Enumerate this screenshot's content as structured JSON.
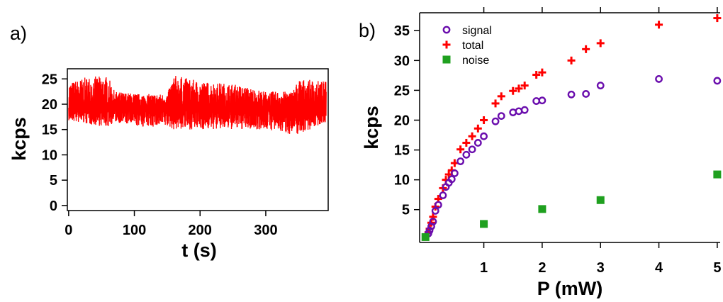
{
  "chart_data": [
    {
      "type": "line",
      "panel_label": "a)",
      "xlabel": "t (s)",
      "ylabel": "kcps",
      "xlim": [
        -2,
        395
      ],
      "ylim": [
        -1,
        27
      ],
      "xticks": [
        0,
        100,
        200,
        300
      ],
      "yticks": [
        0,
        5,
        10,
        15,
        20,
        25
      ],
      "grid": false,
      "series": [
        {
          "color": "#ff0000",
          "mean": 19.3,
          "x_range": [
            0,
            392
          ],
          "min": 13.6,
          "max": 26.2,
          "envelope": [
            [
              0,
              16.7,
              24.2
            ],
            [
              30,
              16.0,
              25.5
            ],
            [
              60,
              15.5,
              25.5
            ],
            [
              70,
              16.5,
              22.5
            ],
            [
              110,
              15.5,
              22.0
            ],
            [
              150,
              15.5,
              22.0
            ],
            [
              160,
              15.0,
              25.8
            ],
            [
              200,
              15.0,
              24.5
            ],
            [
              250,
              15.0,
              24.0
            ],
            [
              300,
              15.0,
              22.5
            ],
            [
              340,
              14.0,
              22.5
            ],
            [
              350,
              14.0,
              25.0
            ],
            [
              392,
              16.5,
              24.5
            ]
          ]
        }
      ]
    },
    {
      "type": "scatter",
      "panel_label": "b)",
      "xlabel": "P (mW)",
      "ylabel": "kcps",
      "xlim": [
        -0.1,
        5.05
      ],
      "ylim": [
        -0.5,
        38
      ],
      "xticks": [
        1,
        2,
        3,
        4,
        5
      ],
      "yticks": [
        5,
        10,
        15,
        20,
        25,
        30,
        35
      ],
      "grid": false,
      "legend": "top-left",
      "series": [
        {
          "name": "signal",
          "color": "#6a0dad",
          "marker": "circle",
          "points": [
            [
              0.05,
              1
            ],
            [
              0.07,
              1.5
            ],
            [
              0.1,
              2.2
            ],
            [
              0.13,
              3
            ],
            [
              0.17,
              4.8
            ],
            [
              0.22,
              5.8
            ],
            [
              0.3,
              7.4
            ],
            [
              0.35,
              8.8
            ],
            [
              0.4,
              9.5
            ],
            [
              0.45,
              10.1
            ],
            [
              0.5,
              11.1
            ],
            [
              0.6,
              13.1
            ],
            [
              0.7,
              14.2
            ],
            [
              0.8,
              15.1
            ],
            [
              0.9,
              16.2
            ],
            [
              1.0,
              17.3
            ],
            [
              1.2,
              19.8
            ],
            [
              1.3,
              20.7
            ],
            [
              1.5,
              21.3
            ],
            [
              1.6,
              21.5
            ],
            [
              1.7,
              21.7
            ],
            [
              1.9,
              23.2
            ],
            [
              2.0,
              23.3
            ],
            [
              2.5,
              24.3
            ],
            [
              2.75,
              24.4
            ],
            [
              3.0,
              25.8
            ],
            [
              4.0,
              26.9
            ],
            [
              5.0,
              26.6
            ]
          ]
        },
        {
          "name": "total",
          "color": "#ff0000",
          "marker": "plus",
          "points": [
            [
              0.05,
              1.2
            ],
            [
              0.07,
              1.8
            ],
            [
              0.1,
              2.8
            ],
            [
              0.13,
              3.8
            ],
            [
              0.17,
              5.5
            ],
            [
              0.22,
              6.8
            ],
            [
              0.3,
              8.6
            ],
            [
              0.35,
              10
            ],
            [
              0.4,
              10.9
            ],
            [
              0.45,
              11.6
            ],
            [
              0.5,
              12.8
            ],
            [
              0.6,
              15.1
            ],
            [
              0.7,
              16.2
            ],
            [
              0.8,
              17.3
            ],
            [
              0.9,
              18.6
            ],
            [
              1.0,
              20
            ],
            [
              1.2,
              22.8
            ],
            [
              1.3,
              24
            ],
            [
              1.5,
              24.9
            ],
            [
              1.6,
              25.3
            ],
            [
              1.7,
              25.8
            ],
            [
              1.9,
              27.6
            ],
            [
              2.0,
              28
            ],
            [
              2.5,
              30
            ],
            [
              2.75,
              31.9
            ],
            [
              3.0,
              32.9
            ],
            [
              4.0,
              36
            ],
            [
              5.0,
              37.1
            ]
          ]
        },
        {
          "name": "noise",
          "color": "#1fa01f",
          "marker": "square",
          "points": [
            [
              0,
              0.4
            ],
            [
              1.0,
              2.6
            ],
            [
              2.0,
              5.1
            ],
            [
              3.0,
              6.6
            ],
            [
              4.0,
              null
            ],
            [
              5.0,
              10.9
            ]
          ]
        }
      ]
    }
  ]
}
